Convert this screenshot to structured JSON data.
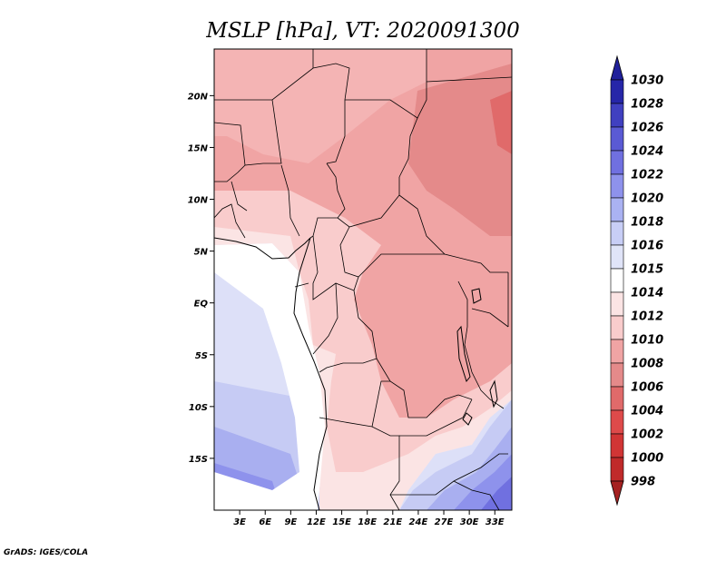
{
  "title": "MSLP [hPa], VT: 2020091300",
  "credit": "GrADS: IGES/COLA",
  "map": {
    "lon_range": [
      0,
      35
    ],
    "lat_range": [
      -20,
      24.5
    ],
    "lon_ticks": [
      {
        "value": 3,
        "label": "3E"
      },
      {
        "value": 6,
        "label": "6E"
      },
      {
        "value": 9,
        "label": "9E"
      },
      {
        "value": 12,
        "label": "12E"
      },
      {
        "value": 15,
        "label": "15E"
      },
      {
        "value": 18,
        "label": "18E"
      },
      {
        "value": 21,
        "label": "21E"
      },
      {
        "value": 24,
        "label": "24E"
      },
      {
        "value": 27,
        "label": "27E"
      },
      {
        "value": 30,
        "label": "30E"
      },
      {
        "value": 33,
        "label": "33E"
      }
    ],
    "lat_ticks": [
      {
        "value": 20,
        "label": "20N"
      },
      {
        "value": 15,
        "label": "15N"
      },
      {
        "value": 10,
        "label": "10N"
      },
      {
        "value": 5,
        "label": "5N"
      },
      {
        "value": 0,
        "label": "EQ"
      },
      {
        "value": -5,
        "label": "5S"
      },
      {
        "value": -10,
        "label": "10S"
      },
      {
        "value": -15,
        "label": "15S"
      }
    ]
  },
  "colorbar": {
    "levels": [
      {
        "label": "998",
        "color": "#a52121"
      },
      {
        "label": "1000",
        "color": "#c02a2a"
      },
      {
        "label": "1002",
        "color": "#d13535"
      },
      {
        "label": "1004",
        "color": "#de4a4a"
      },
      {
        "label": "1006",
        "color": "#e06a6a"
      },
      {
        "label": "1008",
        "color": "#e48a8a"
      },
      {
        "label": "1010",
        "color": "#f0a4a4"
      },
      {
        "label": "1012",
        "color": "#f9cccc"
      },
      {
        "label": "1014",
        "color": "#fbe4e4"
      },
      {
        "label": "1015",
        "color": "#ffffff"
      },
      {
        "label": "1016",
        "color": "#e0e4f8"
      },
      {
        "label": "1018",
        "color": "#c8cef6"
      },
      {
        "label": "1020",
        "color": "#aab2f2"
      },
      {
        "label": "1022",
        "color": "#8e92ec"
      },
      {
        "label": "1024",
        "color": "#7070e0"
      },
      {
        "label": "1026",
        "color": "#5a5ad4"
      },
      {
        "label": "1028",
        "color": "#4040c0"
      },
      {
        "label": "1030",
        "color": "#2626a8"
      }
    ],
    "top_color": "#20209a"
  }
}
